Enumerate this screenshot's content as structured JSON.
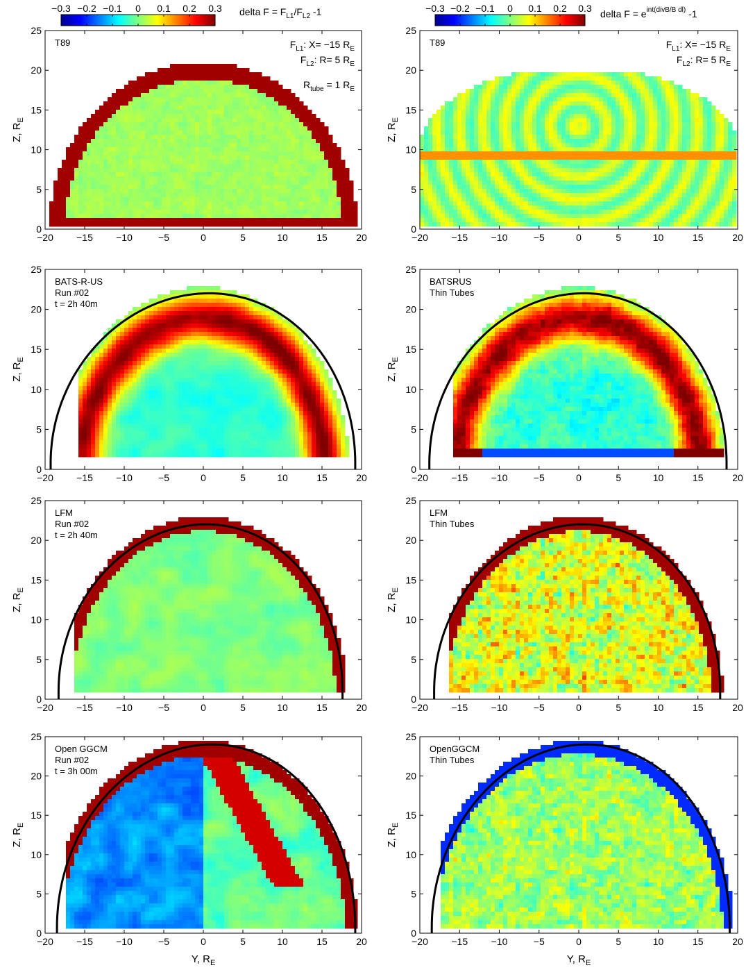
{
  "figure": {
    "colorbar_ticks": [
      "-0.3",
      "-0.2",
      "-0.1",
      "0",
      "0.1",
      "0.2",
      "0.3"
    ],
    "left_title": {
      "base": "delta F = F",
      "s1": "L1",
      "mid": "/F",
      "s2": "L2",
      "end": " -1"
    },
    "right_title": {
      "base": "delta F = e",
      "sup": "int(divB/B dl)",
      "end": " -1"
    },
    "xlabel": {
      "base": "Y, R",
      "sub": "E"
    },
    "ylabel": {
      "base": "Z, R",
      "sub": "E"
    }
  },
  "chart_data": [
    {
      "type": "heatmap",
      "id": "p11",
      "labels": [
        "T89"
      ],
      "notes": {
        "l1": {
          "a": "F",
          "b": "L1",
          "c": ": X= −15 R",
          "d": "E"
        },
        "l2": {
          "a": "F",
          "b": "L2",
          "c": ":   R= 5 R",
          "d": "E"
        },
        "l3": {
          "a": "R",
          "b": "tube",
          "c": " = 1 R",
          "d": "E"
        }
      },
      "xlim": [
        -20,
        20
      ],
      "ylim": [
        0,
        25
      ],
      "xticks": [
        -20,
        -15,
        -10,
        -5,
        0,
        5,
        10,
        15,
        20
      ],
      "yticks": [
        0,
        5,
        10,
        15,
        20,
        25
      ],
      "style": "t89a",
      "colorbar": [
        -0.3,
        0.3
      ],
      "has_curve": false
    },
    {
      "type": "heatmap",
      "id": "p12",
      "labels": [
        "T89"
      ],
      "notes": {
        "l1": {
          "a": "F",
          "b": "L1",
          "c": ": X= −15 R",
          "d": "E"
        },
        "l2": {
          "a": "F",
          "b": "L2",
          "c": ":   R= 5 R",
          "d": "E"
        }
      },
      "xlim": [
        -20,
        20
      ],
      "ylim": [
        0,
        25
      ],
      "xticks": [
        -20,
        -15,
        -10,
        -5,
        0,
        5,
        10,
        15,
        20
      ],
      "yticks": [
        0,
        5,
        10,
        15,
        20,
        25
      ],
      "style": "t89b",
      "colorbar": [
        -0.3,
        0.3
      ],
      "has_curve": false
    },
    {
      "type": "heatmap",
      "id": "p21",
      "labels": [
        "BATS-R-US",
        "Run #02",
        "t = 2h 40m"
      ],
      "xlim": [
        -20,
        20
      ],
      "ylim": [
        0,
        25
      ],
      "xticks": [
        -20,
        -15,
        -10,
        -5,
        0,
        5,
        10,
        15,
        20
      ],
      "yticks": [
        0,
        5,
        10,
        15,
        20,
        25
      ],
      "style": "bats",
      "colorbar": [
        -0.3,
        0.3
      ],
      "has_curve": true,
      "boundary": {
        "z0": 22,
        "xa": -19.3,
        "xb": 19.2,
        "y0": 0.8
      }
    },
    {
      "type": "heatmap",
      "id": "p22",
      "labels": [
        "BATSRUS",
        "Thin Tubes"
      ],
      "xlim": [
        -20,
        20
      ],
      "ylim": [
        0,
        25
      ],
      "xticks": [
        -20,
        -15,
        -10,
        -5,
        0,
        5,
        10,
        15,
        20
      ],
      "yticks": [
        0,
        5,
        10,
        15,
        20,
        25
      ],
      "style": "batsT",
      "colorbar": [
        -0.3,
        0.3
      ],
      "has_curve": true,
      "boundary": {
        "z0": 22,
        "xa": -18.8,
        "xb": 18.6,
        "y0": 0.8
      }
    },
    {
      "type": "heatmap",
      "id": "p31",
      "labels": [
        "LFM",
        "Run #02",
        "t = 2h 40m"
      ],
      "xlim": [
        -20,
        20
      ],
      "ylim": [
        0,
        25
      ],
      "xticks": [
        -20,
        -15,
        -10,
        -5,
        0,
        5,
        10,
        15,
        20
      ],
      "yticks": [
        0,
        5,
        10,
        15,
        20,
        25
      ],
      "style": "lfm",
      "colorbar": [
        -0.3,
        0.3
      ],
      "has_curve": true,
      "boundary": {
        "z0": 22,
        "xa": -18.3,
        "xb": 17.6,
        "y0": 1.0
      }
    },
    {
      "type": "heatmap",
      "id": "p32",
      "labels": [
        "LFM",
        "Thin Tubes"
      ],
      "xlim": [
        -20,
        20
      ],
      "ylim": [
        0,
        25
      ],
      "xticks": [
        -20,
        -15,
        -10,
        -5,
        0,
        5,
        10,
        15,
        20
      ],
      "yticks": [
        0,
        5,
        10,
        15,
        20,
        25
      ],
      "style": "lfmT",
      "colorbar": [
        -0.3,
        0.3
      ],
      "has_curve": true,
      "boundary": {
        "z0": 22,
        "xa": -18.2,
        "xb": 17.8,
        "y0": 1.0
      }
    },
    {
      "type": "heatmap",
      "id": "p41",
      "labels": [
        "Open GGCM",
        "Run #02",
        "t = 3h 00m"
      ],
      "xlim": [
        -20,
        20
      ],
      "ylim": [
        0,
        25
      ],
      "xticks": [
        -20,
        -15,
        -10,
        -5,
        0,
        5,
        10,
        15,
        20
      ],
      "yticks": [
        0,
        5,
        10,
        15,
        20,
        25
      ],
      "style": "ggcm",
      "colorbar": [
        -0.3,
        0.3
      ],
      "has_curve": true,
      "boundary": {
        "z0": 24,
        "xa": -18.5,
        "xb": 19.2,
        "y0": 0.7
      }
    },
    {
      "type": "heatmap",
      "id": "p42",
      "labels": [
        "OpenGGCM",
        "Thin Tubes"
      ],
      "xlim": [
        -20,
        20
      ],
      "ylim": [
        0,
        25
      ],
      "xticks": [
        -20,
        -15,
        -10,
        -5,
        0,
        5,
        10,
        15,
        20
      ],
      "yticks": [
        0,
        5,
        10,
        15,
        20,
        25
      ],
      "style": "ggcmT",
      "colorbar": [
        -0.3,
        0.3
      ],
      "has_curve": true,
      "boundary": {
        "z0": 24,
        "xa": -18.5,
        "xb": 19.0,
        "y0": 0.7
      }
    }
  ]
}
